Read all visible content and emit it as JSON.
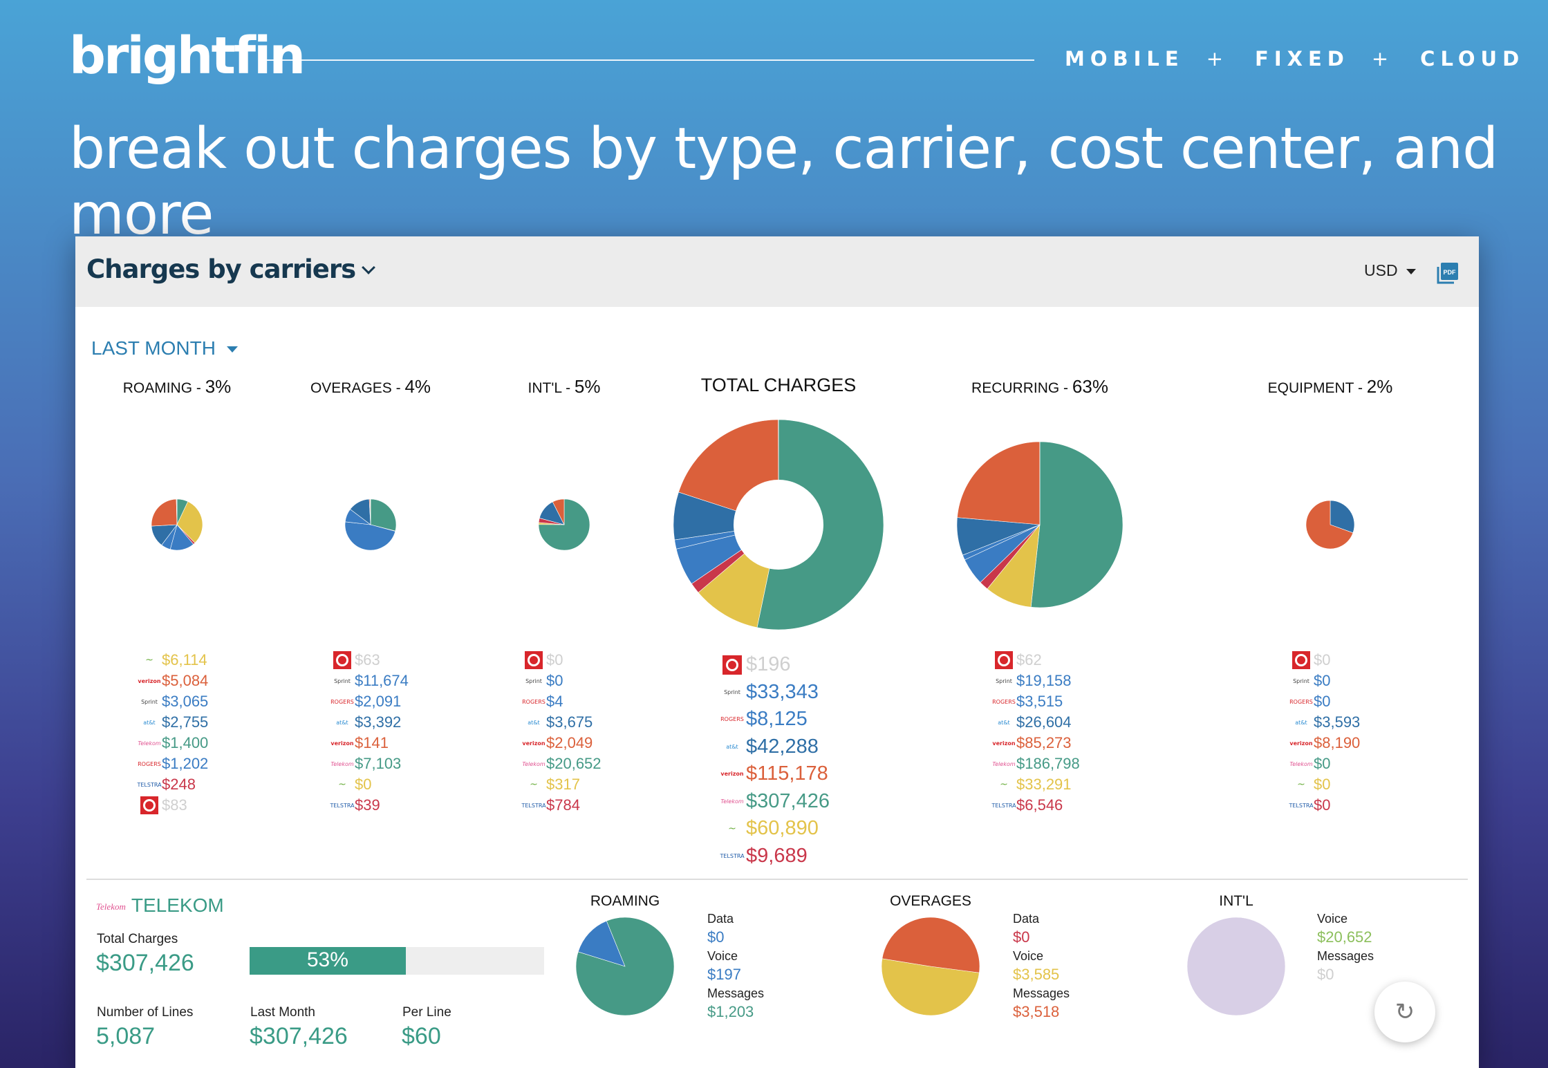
{
  "brand": {
    "name": "brightfin"
  },
  "nav": [
    "MOBILE",
    "FIXED",
    "CLOUD"
  ],
  "nav_separator": "+",
  "headline": "break out charges by type, carrier, cost center, and more",
  "panel": {
    "title": "Charges by carriers",
    "currency": "USD",
    "pdf_label": "PDF",
    "period": "LAST MONTH"
  },
  "colors": {
    "teal": "#469a86",
    "yellow": "#e3c34a",
    "red": "#c9374a",
    "blue": "#3a7cc3",
    "darkblue": "#2f6fa6",
    "orange": "#db603b",
    "gray": "#cfcfcf",
    "green": "#8cbf5c",
    "lavender": "#d8cfe6"
  },
  "categories": [
    {
      "key": "roaming",
      "label": "ROAMING - ",
      "pct": "3%",
      "legend": [
        {
          "carrier": "telstra-t",
          "value": "$6,114",
          "color": "#e3c34a"
        },
        {
          "carrier": "verizon",
          "value": "$5,084",
          "color": "#db603b"
        },
        {
          "carrier": "sprint",
          "value": "$3,065",
          "color": "#3a7cc3"
        },
        {
          "carrier": "att",
          "value": "$2,755",
          "color": "#2f6fa6"
        },
        {
          "carrier": "telekom",
          "value": "$1,400",
          "color": "#469a86"
        },
        {
          "carrier": "rogers",
          "value": "$1,202",
          "color": "#3a7cc3"
        },
        {
          "carrier": "telstra",
          "value": "$248",
          "color": "#c9374a"
        },
        {
          "carrier": "vodafone",
          "value": "$83",
          "color": "#cfcfcf"
        }
      ]
    },
    {
      "key": "overages",
      "label": "OVERAGES - ",
      "pct": "4%",
      "legend": [
        {
          "carrier": "vodafone",
          "value": "$63",
          "color": "#cfcfcf"
        },
        {
          "carrier": "sprint",
          "value": "$11,674",
          "color": "#3a7cc3"
        },
        {
          "carrier": "rogers",
          "value": "$2,091",
          "color": "#3a7cc3"
        },
        {
          "carrier": "att",
          "value": "$3,392",
          "color": "#2f6fa6"
        },
        {
          "carrier": "verizon",
          "value": "$141",
          "color": "#db603b"
        },
        {
          "carrier": "telekom",
          "value": "$7,103",
          "color": "#469a86"
        },
        {
          "carrier": "telstra-t",
          "value": "$0",
          "color": "#e3c34a"
        },
        {
          "carrier": "telstra",
          "value": "$39",
          "color": "#c9374a"
        }
      ]
    },
    {
      "key": "intl",
      "label": "INT'L - ",
      "pct": "5%",
      "legend": [
        {
          "carrier": "vodafone",
          "value": "$0",
          "color": "#cfcfcf"
        },
        {
          "carrier": "sprint",
          "value": "$0",
          "color": "#3a7cc3"
        },
        {
          "carrier": "rogers",
          "value": "$4",
          "color": "#3a7cc3"
        },
        {
          "carrier": "att",
          "value": "$3,675",
          "color": "#2f6fa6"
        },
        {
          "carrier": "verizon",
          "value": "$2,049",
          "color": "#db603b"
        },
        {
          "carrier": "telekom",
          "value": "$20,652",
          "color": "#469a86"
        },
        {
          "carrier": "telstra-t",
          "value": "$317",
          "color": "#e3c34a"
        },
        {
          "carrier": "telstra",
          "value": "$784",
          "color": "#c9374a"
        }
      ]
    },
    {
      "key": "total",
      "label": "TOTAL CHARGES",
      "pct": "",
      "legend": [
        {
          "carrier": "vodafone",
          "value": "$196",
          "color": "#cfcfcf"
        },
        {
          "carrier": "sprint",
          "value": "$33,343",
          "color": "#3a7cc3"
        },
        {
          "carrier": "rogers",
          "value": "$8,125",
          "color": "#3a7cc3"
        },
        {
          "carrier": "att",
          "value": "$42,288",
          "color": "#2f6fa6"
        },
        {
          "carrier": "verizon",
          "value": "$115,178",
          "color": "#db603b"
        },
        {
          "carrier": "telekom",
          "value": "$307,426",
          "color": "#469a86"
        },
        {
          "carrier": "telstra-t",
          "value": "$60,890",
          "color": "#e3c34a"
        },
        {
          "carrier": "telstra",
          "value": "$9,689",
          "color": "#c9374a"
        }
      ]
    },
    {
      "key": "recurring",
      "label": "RECURRING - ",
      "pct": "63%",
      "legend": [
        {
          "carrier": "vodafone",
          "value": "$62",
          "color": "#cfcfcf"
        },
        {
          "carrier": "sprint",
          "value": "$19,158",
          "color": "#3a7cc3"
        },
        {
          "carrier": "rogers",
          "value": "$3,515",
          "color": "#3a7cc3"
        },
        {
          "carrier": "att",
          "value": "$26,604",
          "color": "#2f6fa6"
        },
        {
          "carrier": "verizon",
          "value": "$85,273",
          "color": "#db603b"
        },
        {
          "carrier": "telekom",
          "value": "$186,798",
          "color": "#469a86"
        },
        {
          "carrier": "telstra-t",
          "value": "$33,291",
          "color": "#e3c34a"
        },
        {
          "carrier": "telstra",
          "value": "$6,546",
          "color": "#c9374a"
        }
      ]
    },
    {
      "key": "equipment",
      "label": "EQUIPMENT - ",
      "pct": "2%",
      "legend": [
        {
          "carrier": "vodafone",
          "value": "$0",
          "color": "#cfcfcf"
        },
        {
          "carrier": "sprint",
          "value": "$0",
          "color": "#3a7cc3"
        },
        {
          "carrier": "rogers",
          "value": "$0",
          "color": "#3a7cc3"
        },
        {
          "carrier": "att",
          "value": "$3,593",
          "color": "#2f6fa6"
        },
        {
          "carrier": "verizon",
          "value": "$8,190",
          "color": "#db603b"
        },
        {
          "carrier": "telekom",
          "value": "$0",
          "color": "#469a86"
        },
        {
          "carrier": "telstra-t",
          "value": "$0",
          "color": "#e3c34a"
        },
        {
          "carrier": "telstra",
          "value": "$0",
          "color": "#c9374a"
        }
      ]
    }
  ],
  "carriers": {
    "vodafone": "",
    "sprint": "Sprint",
    "rogers": "ROGERS",
    "att": "at&t",
    "verizon": "verizon",
    "telekom": "Telekom",
    "telstra-t": "~",
    "telstra": "TELSTRA"
  },
  "detail": {
    "carrier": "TELEKOM",
    "carrier_logo": "Telekom",
    "total_label": "Total Charges",
    "total_value": "$307,426",
    "share_pct": "53%",
    "share_fraction": 0.53,
    "lines_label": "Number of Lines",
    "lines_value": "5,087",
    "last_month_label": "Last Month",
    "last_month_value": "$307,426",
    "per_line_label": "Per Line",
    "per_line_value": "$60",
    "breakdowns": [
      {
        "title": "ROAMING",
        "items": [
          {
            "label": "Data",
            "value": "$0",
            "color": "#3a7cc3"
          },
          {
            "label": "Voice",
            "value": "$197",
            "color": "#3a7cc3"
          },
          {
            "label": "Messages",
            "value": "$1,203",
            "color": "#469a86"
          }
        ]
      },
      {
        "title": "OVERAGES",
        "items": [
          {
            "label": "Data",
            "value": "$0",
            "color": "#c9374a"
          },
          {
            "label": "Voice",
            "value": "$3,585",
            "color": "#e3c34a"
          },
          {
            "label": "Messages",
            "value": "$3,518",
            "color": "#db603b"
          }
        ]
      },
      {
        "title": "INT'L",
        "items": [
          {
            "label": "Voice",
            "value": "$20,652",
            "color": "#8cbf5c"
          },
          {
            "label": "Messages",
            "value": "$0",
            "color": "#cfcfcf"
          }
        ]
      }
    ]
  },
  "chart_data": [
    {
      "type": "pie",
      "categories": [
        "Telstra-T",
        "Verizon",
        "Sprint",
        "AT&T",
        "Telekom",
        "Rogers",
        "Telstra",
        "Vodafone"
      ],
      "values": [
        6114,
        5084,
        3065,
        2755,
        1400,
        1202,
        248,
        83
      ]
    },
    {
      "type": "pie",
      "categories": [
        "Vodafone",
        "Sprint",
        "Rogers",
        "AT&T",
        "Verizon",
        "Telekom",
        "Telstra-T",
        "Telstra"
      ],
      "values": [
        63,
        11674,
        2091,
        3392,
        141,
        7103,
        0,
        39
      ]
    },
    {
      "type": "pie",
      "categories": [
        "Vodafone",
        "Sprint",
        "Rogers",
        "AT&T",
        "Verizon",
        "Telekom",
        "Telstra-T",
        "Telstra"
      ],
      "values": [
        0,
        0,
        4,
        3675,
        2049,
        20652,
        317,
        784
      ]
    },
    {
      "type": "pie",
      "title": "TOTAL CHARGES",
      "categories": [
        "Vodafone",
        "Sprint",
        "Rogers",
        "AT&T",
        "Verizon",
        "Telekom",
        "Telstra-T",
        "Telstra"
      ],
      "values": [
        196,
        33343,
        8125,
        42288,
        115178,
        307426,
        60890,
        9689
      ]
    },
    {
      "type": "pie",
      "categories": [
        "Vodafone",
        "Sprint",
        "Rogers",
        "AT&T",
        "Verizon",
        "Telekom",
        "Telstra-T",
        "Telstra"
      ],
      "values": [
        62,
        19158,
        3515,
        26604,
        85273,
        186798,
        33291,
        6546
      ]
    },
    {
      "type": "pie",
      "categories": [
        "Vodafone",
        "Sprint",
        "Rogers",
        "AT&T",
        "Verizon",
        "Telekom",
        "Telstra-T",
        "Telstra"
      ],
      "values": [
        0,
        0,
        0,
        3593,
        8190,
        0,
        0,
        0
      ]
    },
    {
      "type": "pie",
      "title": "ROAMING",
      "categories": [
        "Data",
        "Voice",
        "Messages"
      ],
      "values": [
        0,
        197,
        1203
      ]
    },
    {
      "type": "pie",
      "title": "OVERAGES",
      "categories": [
        "Data",
        "Voice",
        "Messages"
      ],
      "values": [
        0,
        3585,
        3518
      ]
    },
    {
      "type": "pie",
      "title": "INT'L",
      "categories": [
        "Voice",
        "Messages"
      ],
      "values": [
        20652,
        0
      ]
    }
  ]
}
